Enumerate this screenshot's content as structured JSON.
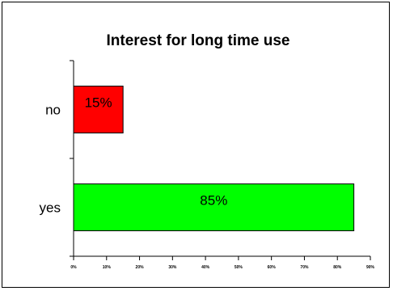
{
  "chart_data": {
    "type": "bar",
    "orientation": "horizontal",
    "title": "Interest for long time use",
    "xlabel": "",
    "ylabel": "",
    "categories": [
      "no",
      "yes"
    ],
    "values": [
      15,
      85
    ],
    "data_labels": [
      "15%",
      "85%"
    ],
    "bar_colors": [
      "#ff0000",
      "#00ff00"
    ],
    "xlim": [
      0,
      90
    ],
    "x_ticks": [
      0,
      10,
      20,
      30,
      40,
      50,
      60,
      70,
      80,
      90
    ],
    "x_tick_labels": [
      "0%",
      "10%",
      "20%",
      "30%",
      "40%",
      "50%",
      "60%",
      "70%",
      "80%",
      "90%"
    ],
    "grid": false,
    "legend": "none"
  }
}
